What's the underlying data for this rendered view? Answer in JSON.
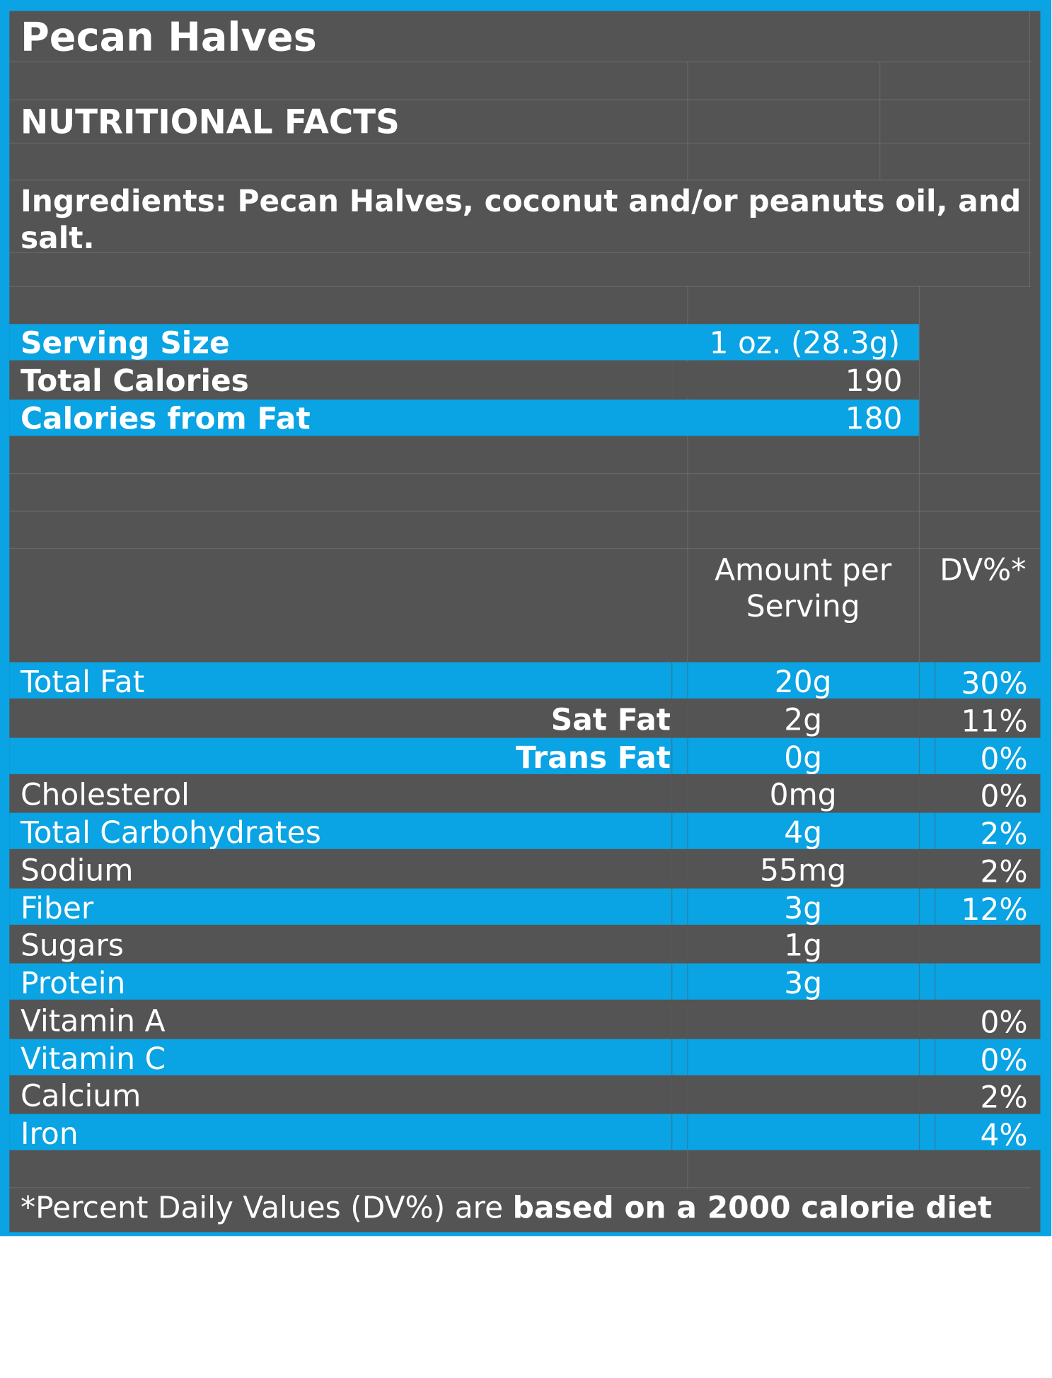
{
  "title": "Pecan Halves",
  "subtitle": "NUTRITIONAL FACTS",
  "ingredients": {
    "line1": "Ingredients: Pecan Halves, coconut and/or peanuts oil, and",
    "line2": "salt."
  },
  "summary": [
    {
      "label": "Serving Size",
      "value": "1 oz. (28.3g)"
    },
    {
      "label": "Total Calories",
      "value": "190"
    },
    {
      "label": "Calories from Fat",
      "value": "180"
    }
  ],
  "columns": {
    "amount_line1": "Amount per",
    "amount_line2": "Serving",
    "dv": "DV%*"
  },
  "nutrients": [
    {
      "name": "Total Fat",
      "amount": "20g",
      "dv": "30%"
    },
    {
      "name": "Sat Fat",
      "amount": "2g",
      "dv": "11%"
    },
    {
      "name": "Trans Fat",
      "amount": "0g",
      "dv": "0%"
    },
    {
      "name": "Cholesterol",
      "amount": "0mg",
      "dv": "0%"
    },
    {
      "name": "Total Carbohydrates",
      "amount": "4g",
      "dv": "2%"
    },
    {
      "name": "Sodium",
      "amount": "55mg",
      "dv": "2%"
    },
    {
      "name": "Fiber",
      "amount": "3g",
      "dv": "12%"
    },
    {
      "name": "Sugars",
      "amount": "1g",
      "dv": ""
    },
    {
      "name": "Protein",
      "amount": "3g",
      "dv": ""
    },
    {
      "name": "Vitamin A",
      "amount": "",
      "dv": "0%"
    },
    {
      "name": "Vitamin C",
      "amount": "",
      "dv": "0%"
    },
    {
      "name": "Calcium",
      "amount": "",
      "dv": "2%"
    },
    {
      "name": "Iron",
      "amount": "",
      "dv": "4%"
    }
  ],
  "footnote": {
    "normal": "*Percent Daily Values (DV%) are ",
    "bold": "based on a 2000 calorie diet"
  },
  "colors": {
    "accent": "#0aa3e3",
    "panel": "#545454",
    "text": "#ffffff"
  }
}
